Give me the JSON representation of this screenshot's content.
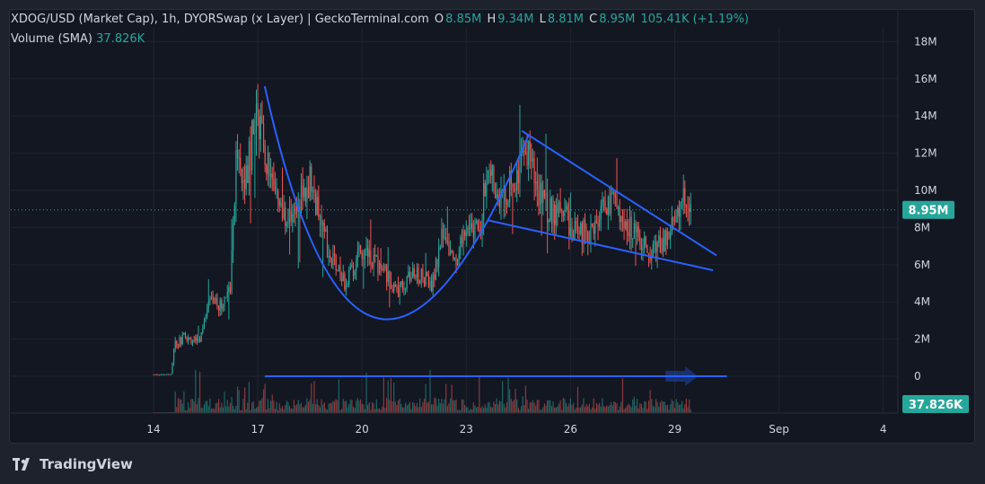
{
  "header": {
    "symbol": "XDOG/USD (Market Cap), 1h, DYORSwap (x Layer) | GeckoTerminal.com",
    "open_label": "O",
    "open": "8.85M",
    "high_label": "H",
    "high": "9.34M",
    "low_label": "L",
    "low": "8.81M",
    "close_label": "C",
    "close": "8.95M",
    "change": "105.41K (+1.19%)"
  },
  "volume_indicator": {
    "label": "Volume (SMA)",
    "value": "37.826K"
  },
  "price_badge": "8.95M",
  "volume_badge": "37.826K",
  "branding": "TradingView",
  "colors": {
    "up": "#26a69a",
    "down": "#ef5350",
    "drawing": "#2962ff",
    "background": "#131722"
  },
  "chart_data": {
    "type": "candlestick",
    "y_ticks": [
      "18M",
      "16M",
      "14M",
      "12M",
      "10M",
      "8M",
      "6M",
      "4M",
      "2M",
      "0"
    ],
    "y_tick_values": [
      18,
      16,
      14,
      12,
      10,
      8,
      6,
      4,
      2,
      0
    ],
    "x_ticks": [
      "14",
      "17",
      "20",
      "23",
      "26",
      "29",
      "Sep",
      "4"
    ],
    "x_tick_days": [
      14,
      17,
      20,
      23,
      26,
      29,
      32,
      35
    ],
    "ylim": [
      0,
      18
    ],
    "current_price": 8.95,
    "series_anchors": [
      {
        "day": 14.0,
        "price": 0.1
      },
      {
        "day": 14.5,
        "price": 0.1
      },
      {
        "day": 14.6,
        "price": 1.6
      },
      {
        "day": 14.9,
        "price": 2.2
      },
      {
        "day": 15.3,
        "price": 1.8
      },
      {
        "day": 15.6,
        "price": 4.0
      },
      {
        "day": 15.9,
        "price": 3.8
      },
      {
        "day": 16.2,
        "price": 4.6
      },
      {
        "day": 16.4,
        "price": 12.5
      },
      {
        "day": 16.6,
        "price": 10.0
      },
      {
        "day": 17.0,
        "price": 14.5
      },
      {
        "day": 17.3,
        "price": 11.0
      },
      {
        "day": 17.6,
        "price": 9.0
      },
      {
        "day": 18.0,
        "price": 8.5
      },
      {
        "day": 18.5,
        "price": 10.5
      },
      {
        "day": 19.0,
        "price": 7.0
      },
      {
        "day": 19.5,
        "price": 5.0
      },
      {
        "day": 20.0,
        "price": 6.8
      },
      {
        "day": 20.5,
        "price": 6.0
      },
      {
        "day": 21.0,
        "price": 4.5
      },
      {
        "day": 21.5,
        "price": 5.5
      },
      {
        "day": 22.0,
        "price": 5.0
      },
      {
        "day": 22.3,
        "price": 7.5
      },
      {
        "day": 22.7,
        "price": 5.8
      },
      {
        "day": 23.0,
        "price": 8.2
      },
      {
        "day": 23.4,
        "price": 7.6
      },
      {
        "day": 23.6,
        "price": 11.8
      },
      {
        "day": 24.0,
        "price": 9.5
      },
      {
        "day": 24.5,
        "price": 10.8
      },
      {
        "day": 24.8,
        "price": 12.0
      },
      {
        "day": 25.2,
        "price": 9.2
      },
      {
        "day": 25.8,
        "price": 8.6
      },
      {
        "day": 26.2,
        "price": 7.6
      },
      {
        "day": 26.7,
        "price": 8.0
      },
      {
        "day": 27.1,
        "price": 9.5
      },
      {
        "day": 27.6,
        "price": 8.3
      },
      {
        "day": 28.0,
        "price": 7.5
      },
      {
        "day": 28.3,
        "price": 6.6
      },
      {
        "day": 28.7,
        "price": 7.2
      },
      {
        "day": 29.0,
        "price": 8.5
      },
      {
        "day": 29.3,
        "price": 9.5
      },
      {
        "day": 29.5,
        "price": 8.95
      }
    ],
    "drawings": [
      {
        "name": "cup-curve",
        "points": [
          {
            "day": 17.2,
            "price": 15.6
          },
          {
            "day": 20.5,
            "price": 3.1
          },
          {
            "day": 24.8,
            "price": 13.0
          }
        ]
      },
      {
        "name": "wedge-upper",
        "points": [
          {
            "day": 24.6,
            "price": 13.2
          },
          {
            "day": 30.2,
            "price": 6.5
          }
        ]
      },
      {
        "name": "wedge-lower",
        "points": [
          {
            "day": 23.6,
            "price": 8.4
          },
          {
            "day": 30.1,
            "price": 5.7
          }
        ]
      },
      {
        "name": "volume-horizontal",
        "points": [
          {
            "day": 17.2,
            "price": 0
          },
          {
            "day": 30.5,
            "price": 0
          }
        ]
      }
    ]
  }
}
